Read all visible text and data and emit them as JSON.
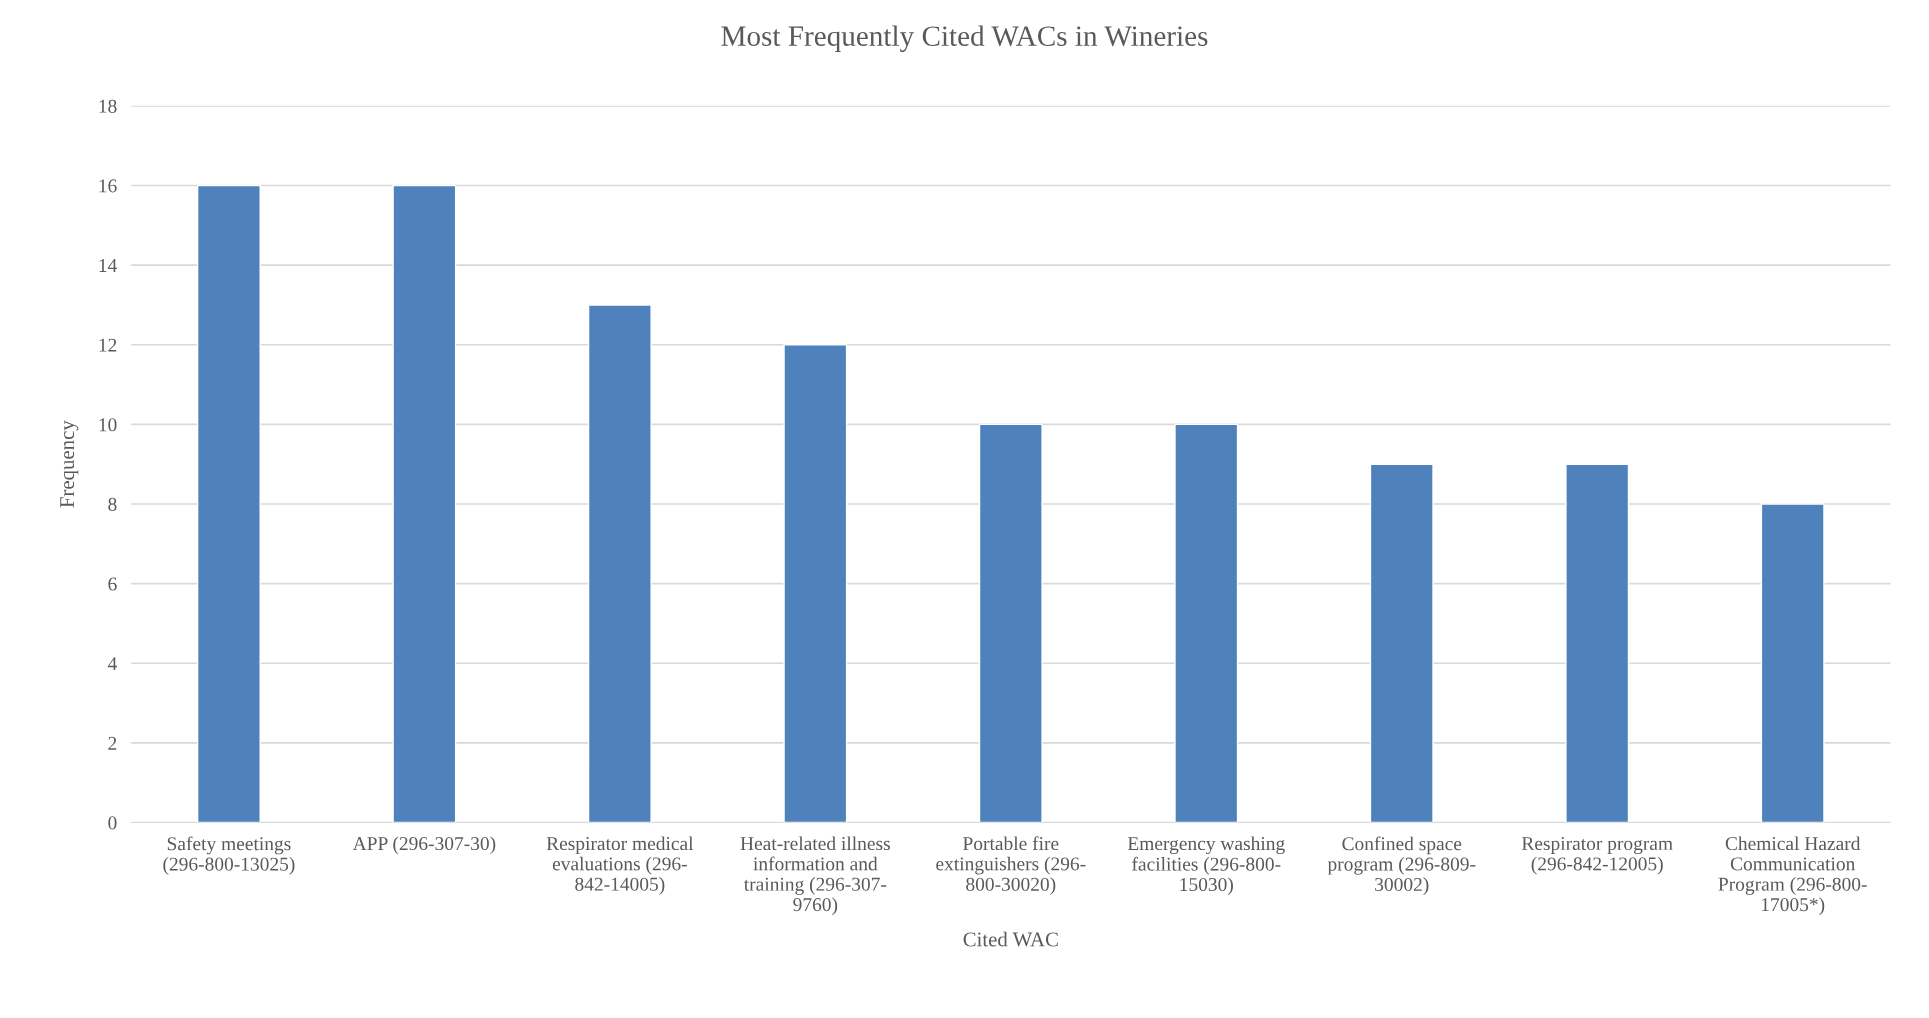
{
  "chart_data": {
    "type": "bar",
    "title": "Most Frequently Cited WACs in Wineries",
    "xlabel": "Cited WAC",
    "ylabel": "Frequency",
    "categories": [
      "Safety meetings (296-800-13025)",
      "APP (296-307-30)",
      "Respirator medical evaluations (296-842-14005)",
      "Heat-related illness information and training (296-307-9760)",
      "Portable fire extinguishers (296-800-30020)",
      "Emergency washing facilities (296-800-15030)",
      "Confined space program (296-809-30002)",
      "Respirator program (296-842-12005)",
      "Chemical Hazard Communication Program (296-800-17005*)"
    ],
    "values": [
      16,
      16,
      13,
      12,
      10,
      10,
      9,
      9,
      8
    ],
    "color": "#4f81bd",
    "ylim": [
      0,
      18
    ],
    "yticks": [
      0,
      2,
      4,
      6,
      8,
      10,
      12,
      14,
      16,
      18
    ],
    "grid": "y",
    "legend": false
  }
}
